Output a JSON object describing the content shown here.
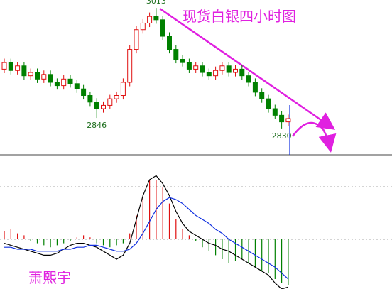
{
  "chart_data": [
    {
      "type": "candlestick",
      "title": "现货白银四小时图",
      "open": [
        2920,
        2930,
        2918,
        2925,
        2910,
        2915,
        2905,
        2912,
        2900,
        2895,
        2905,
        2898,
        2890,
        2880,
        2870,
        2860,
        2865,
        2875,
        2880,
        2900,
        2950,
        2980,
        2990,
        3000,
        2995,
        2970,
        2950,
        2935,
        2930,
        2920,
        2925,
        2915,
        2910,
        2918,
        2925,
        2915,
        2920,
        2910,
        2900,
        2885,
        2875,
        2860,
        2850,
        2840
      ],
      "high": [
        2936,
        2936,
        2931,
        2931,
        2921,
        2921,
        2918,
        2918,
        2906,
        2911,
        2911,
        2904,
        2896,
        2886,
        2876,
        2871,
        2881,
        2886,
        2906,
        2956,
        2986,
        2996,
        3006,
        3013,
        3001,
        2976,
        2956,
        2941,
        2936,
        2931,
        2931,
        2921,
        2924,
        2931,
        2931,
        2926,
        2926,
        2916,
        2906,
        2891,
        2881,
        2866,
        2856,
        2851
      ],
      "low": [
        2914,
        2912,
        2912,
        2904,
        2904,
        2899,
        2899,
        2894,
        2889,
        2889,
        2892,
        2884,
        2874,
        2864,
        2846,
        2854,
        2859,
        2869,
        2874,
        2894,
        2944,
        2974,
        2984,
        2989,
        2964,
        2944,
        2929,
        2924,
        2914,
        2914,
        2909,
        2904,
        2904,
        2912,
        2909,
        2909,
        2904,
        2894,
        2879,
        2869,
        2854,
        2844,
        2830,
        2834
      ],
      "close": [
        2930,
        2918,
        2925,
        2910,
        2915,
        2905,
        2912,
        2900,
        2895,
        2905,
        2898,
        2890,
        2880,
        2870,
        2860,
        2865,
        2875,
        2880,
        2900,
        2950,
        2980,
        2990,
        3000,
        2995,
        2970,
        2950,
        2935,
        2930,
        2920,
        2925,
        2915,
        2910,
        2918,
        2925,
        2915,
        2920,
        2910,
        2900,
        2885,
        2875,
        2860,
        2850,
        2840,
        2845
      ],
      "up_color": "#e01010",
      "down_color": "#008000",
      "ylim": [
        2790,
        3025
      ]
    },
    {
      "type": "macd",
      "annotation": "萧熙宇",
      "histogram": [
        4,
        5,
        3,
        2,
        -1,
        -2,
        -3,
        -4,
        -3,
        -2,
        -1,
        1,
        2,
        1,
        -2,
        -3,
        -4,
        -3,
        -2,
        3,
        12,
        22,
        30,
        30,
        26,
        18,
        10,
        5,
        2,
        -1,
        -4,
        -6,
        -8,
        -10,
        -12,
        -11,
        -10,
        -12,
        -14,
        -16,
        -17,
        -20,
        -22,
        -23
      ],
      "up_color": "#e01010",
      "down_color": "#008000",
      "series": [
        {
          "color": "#000000",
          "values": [
            -2,
            -3,
            -4,
            -5,
            -6,
            -7,
            -8,
            -8,
            -7,
            -5,
            -3,
            -2,
            -2,
            -3,
            -4,
            -6,
            -8,
            -10,
            -8,
            -2,
            10,
            22,
            30,
            32,
            28,
            22,
            14,
            8,
            4,
            2,
            0,
            -2,
            -3,
            -5,
            -6,
            -8,
            -10,
            -12,
            -14,
            -16,
            -18,
            -22,
            -25,
            -24
          ]
        },
        {
          "color": "#1030e0",
          "values": [
            -4,
            -4,
            -5,
            -5,
            -5,
            -6,
            -6,
            -6,
            -6,
            -5,
            -5,
            -4,
            -4,
            -3,
            -3,
            -4,
            -5,
            -6,
            -6,
            -5,
            -2,
            3,
            9,
            15,
            19,
            21,
            20,
            18,
            15,
            12,
            10,
            8,
            5,
            3,
            0,
            -2,
            -4,
            -6,
            -8,
            -10,
            -12,
            -14,
            -17,
            -20
          ]
        }
      ],
      "ylim": [
        -25,
        40
      ]
    }
  ]
}
